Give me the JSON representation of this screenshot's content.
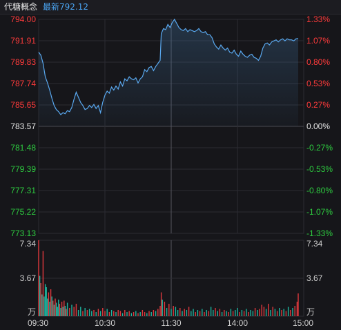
{
  "header": {
    "name": "代糖概念",
    "latest_label": "最新",
    "latest_value": "792.12"
  },
  "colors": {
    "up": "#ff3b3b",
    "down": "#2ecc40",
    "neutral": "#e6e6e6",
    "price_line": "#5aa9f0",
    "volume_up": "#e0393e",
    "volume_down": "#1fb5a0",
    "grid": "#2c2c33",
    "muted_text": "#cfcfcf"
  },
  "chart_data": {
    "type": "line",
    "title": "代糖概念",
    "prev_close": 783.57,
    "price_axis": {
      "ticks": [
        "794.00",
        "791.91",
        "789.83",
        "787.74",
        "785.65",
        "783.57",
        "781.48",
        "779.39",
        "777.31",
        "775.22",
        "773.13"
      ],
      "ylim": [
        773.13,
        794.0
      ]
    },
    "percent_axis": {
      "ticks": [
        "1.33%",
        "1.07%",
        "0.80%",
        "0.53%",
        "0.27%",
        "0.00%",
        "-0.27%",
        "-0.53%",
        "-0.80%",
        "-1.07%",
        "-1.33%"
      ]
    },
    "time_axis": {
      "labels": [
        "09:30",
        "10:30",
        "11:30",
        "14:00",
        "15:00"
      ],
      "sessions": [
        "09:30-11:30",
        "13:00-15:00"
      ],
      "total_minutes": 240
    },
    "price_series": [
      [
        0,
        790.8
      ],
      [
        2,
        790.5
      ],
      [
        4,
        789.7
      ],
      [
        6,
        788.4
      ],
      [
        8,
        787.8
      ],
      [
        10,
        787.1
      ],
      [
        12,
        786.3
      ],
      [
        14,
        785.6
      ],
      [
        16,
        785.2
      ],
      [
        18,
        785.0
      ],
      [
        20,
        784.7
      ],
      [
        22,
        784.9
      ],
      [
        24,
        784.8
      ],
      [
        26,
        785.1
      ],
      [
        28,
        785.0
      ],
      [
        30,
        785.4
      ],
      [
        32,
        786.2
      ],
      [
        34,
        786.9
      ],
      [
        36,
        786.4
      ],
      [
        38,
        785.9
      ],
      [
        40,
        785.6
      ],
      [
        42,
        785.2
      ],
      [
        44,
        785.3
      ],
      [
        46,
        785.6
      ],
      [
        48,
        785.4
      ],
      [
        50,
        785.7
      ],
      [
        52,
        785.3
      ],
      [
        54,
        785.6
      ],
      [
        56,
        784.9
      ],
      [
        58,
        785.9
      ],
      [
        60,
        786.6
      ],
      [
        62,
        787.0
      ],
      [
        64,
        786.8
      ],
      [
        66,
        787.4
      ],
      [
        68,
        787.1
      ],
      [
        70,
        787.5
      ],
      [
        72,
        787.2
      ],
      [
        74,
        787.9
      ],
      [
        76,
        787.5
      ],
      [
        78,
        788.2
      ],
      [
        80,
        788.0
      ],
      [
        82,
        788.4
      ],
      [
        84,
        788.2
      ],
      [
        86,
        788.1
      ],
      [
        88,
        788.3
      ],
      [
        90,
        787.8
      ],
      [
        92,
        788.2
      ],
      [
        94,
        788.4
      ],
      [
        96,
        789.1
      ],
      [
        98,
        788.9
      ],
      [
        100,
        789.3
      ],
      [
        102,
        789.4
      ],
      [
        104,
        789.0
      ],
      [
        106,
        789.4
      ],
      [
        108,
        789.7
      ],
      [
        110,
        790.0
      ],
      [
        111,
        792.6
      ],
      [
        113,
        793.1
      ],
      [
        115,
        793.0
      ],
      [
        117,
        793.5
      ],
      [
        119,
        793.2
      ],
      [
        121,
        793.7
      ],
      [
        123,
        794.0
      ],
      [
        125,
        793.6
      ],
      [
        127,
        793.2
      ],
      [
        129,
        793.0
      ],
      [
        131,
        792.9
      ],
      [
        133,
        793.1
      ],
      [
        135,
        792.8
      ],
      [
        137,
        793.0
      ],
      [
        139,
        792.9
      ],
      [
        141,
        792.8
      ],
      [
        143,
        792.9
      ],
      [
        145,
        793.1
      ],
      [
        147,
        792.8
      ],
      [
        149,
        792.7
      ],
      [
        151,
        792.8
      ],
      [
        153,
        792.5
      ],
      [
        155,
        792.5
      ],
      [
        157,
        792.2
      ],
      [
        159,
        791.6
      ],
      [
        161,
        791.3
      ],
      [
        163,
        791.1
      ],
      [
        165,
        791.5
      ],
      [
        167,
        791.2
      ],
      [
        169,
        791.0
      ],
      [
        171,
        791.2
      ],
      [
        173,
        790.8
      ],
      [
        175,
        790.7
      ],
      [
        177,
        791.0
      ],
      [
        179,
        790.6
      ],
      [
        181,
        790.4
      ],
      [
        183,
        790.9
      ],
      [
        185,
        790.6
      ],
      [
        187,
        790.4
      ],
      [
        189,
        790.3
      ],
      [
        191,
        790.5
      ],
      [
        193,
        790.6
      ],
      [
        195,
        790.3
      ],
      [
        197,
        790.2
      ],
      [
        199,
        790.0
      ],
      [
        201,
        790.4
      ],
      [
        203,
        791.2
      ],
      [
        205,
        791.6
      ],
      [
        207,
        791.7
      ],
      [
        209,
        791.5
      ],
      [
        211,
        791.8
      ],
      [
        213,
        791.9
      ],
      [
        215,
        792.0
      ],
      [
        217,
        791.8
      ],
      [
        219,
        792.0
      ],
      [
        221,
        792.1
      ],
      [
        223,
        791.9
      ],
      [
        225,
        792.1
      ],
      [
        227,
        792.0
      ],
      [
        229,
        792.0
      ],
      [
        231,
        791.9
      ],
      [
        233,
        792.1
      ],
      [
        235,
        792.12
      ]
    ],
    "volume_axis": {
      "unit": "万",
      "ticks": [
        "7.34",
        "3.67"
      ],
      "ylim": [
        0,
        7.34
      ]
    },
    "volume_series": [
      {
        "t": 0,
        "v": 7.34,
        "up": true
      },
      {
        "t": 1,
        "v": 3.9,
        "up": false
      },
      {
        "t": 2,
        "v": 3.2,
        "up": true
      },
      {
        "t": 3,
        "v": 2.1,
        "up": false
      },
      {
        "t": 4,
        "v": 6.3,
        "up": true
      },
      {
        "t": 5,
        "v": 1.9,
        "up": false
      },
      {
        "t": 6,
        "v": 3.1,
        "up": false
      },
      {
        "t": 7,
        "v": 2.8,
        "up": false
      },
      {
        "t": 8,
        "v": 1.7,
        "up": false
      },
      {
        "t": 9,
        "v": 2.3,
        "up": true
      },
      {
        "t": 10,
        "v": 1.4,
        "up": false
      },
      {
        "t": 11,
        "v": 2.6,
        "up": true
      },
      {
        "t": 12,
        "v": 1.9,
        "up": false
      },
      {
        "t": 13,
        "v": 1.5,
        "up": true
      },
      {
        "t": 14,
        "v": 1.1,
        "up": false
      },
      {
        "t": 15,
        "v": 1.7,
        "up": true
      },
      {
        "t": 16,
        "v": 1.3,
        "up": false
      },
      {
        "t": 17,
        "v": 0.9,
        "up": false
      },
      {
        "t": 18,
        "v": 1.6,
        "up": false
      },
      {
        "t": 19,
        "v": 1.2,
        "up": true
      },
      {
        "t": 20,
        "v": 0.8,
        "up": false
      },
      {
        "t": 21,
        "v": 1.4,
        "up": true
      },
      {
        "t": 22,
        "v": 0.9,
        "up": false
      },
      {
        "t": 23,
        "v": 1.5,
        "up": true
      },
      {
        "t": 24,
        "v": 1.0,
        "up": false
      },
      {
        "t": 25,
        "v": 0.7,
        "up": true
      },
      {
        "t": 26,
        "v": 1.3,
        "up": false
      },
      {
        "t": 28,
        "v": 0.8,
        "up": true
      },
      {
        "t": 30,
        "v": 1.1,
        "up": false
      },
      {
        "t": 32,
        "v": 0.9,
        "up": true
      },
      {
        "t": 34,
        "v": 1.2,
        "up": true
      },
      {
        "t": 36,
        "v": 0.6,
        "up": false
      },
      {
        "t": 38,
        "v": 0.9,
        "up": false
      },
      {
        "t": 40,
        "v": 0.5,
        "up": true
      },
      {
        "t": 42,
        "v": 0.8,
        "up": false
      },
      {
        "t": 44,
        "v": 0.6,
        "up": true
      },
      {
        "t": 46,
        "v": 0.7,
        "up": false
      },
      {
        "t": 48,
        "v": 0.5,
        "up": false
      },
      {
        "t": 50,
        "v": 0.6,
        "up": true
      },
      {
        "t": 52,
        "v": 0.4,
        "up": false
      },
      {
        "t": 54,
        "v": 0.7,
        "up": true
      },
      {
        "t": 56,
        "v": 0.5,
        "up": false
      },
      {
        "t": 58,
        "v": 0.8,
        "up": true
      },
      {
        "t": 60,
        "v": 0.5,
        "up": true
      },
      {
        "t": 62,
        "v": 0.7,
        "up": false
      },
      {
        "t": 64,
        "v": 0.4,
        "up": true
      },
      {
        "t": 66,
        "v": 0.6,
        "up": false
      },
      {
        "t": 68,
        "v": 0.5,
        "up": true
      },
      {
        "t": 70,
        "v": 0.4,
        "up": false
      },
      {
        "t": 72,
        "v": 0.6,
        "up": true
      },
      {
        "t": 74,
        "v": 0.5,
        "up": true
      },
      {
        "t": 76,
        "v": 0.3,
        "up": false
      },
      {
        "t": 78,
        "v": 0.6,
        "up": true
      },
      {
        "t": 80,
        "v": 0.4,
        "up": false
      },
      {
        "t": 82,
        "v": 0.5,
        "up": true
      },
      {
        "t": 84,
        "v": 0.3,
        "up": false
      },
      {
        "t": 86,
        "v": 0.4,
        "up": true
      },
      {
        "t": 88,
        "v": 0.5,
        "up": false
      },
      {
        "t": 90,
        "v": 0.3,
        "up": true
      },
      {
        "t": 92,
        "v": 0.4,
        "up": false
      },
      {
        "t": 94,
        "v": 0.6,
        "up": true
      },
      {
        "t": 96,
        "v": 0.4,
        "up": true
      },
      {
        "t": 98,
        "v": 0.3,
        "up": false
      },
      {
        "t": 100,
        "v": 0.5,
        "up": true
      },
      {
        "t": 102,
        "v": 0.4,
        "up": false
      },
      {
        "t": 104,
        "v": 0.6,
        "up": true
      },
      {
        "t": 106,
        "v": 0.5,
        "up": false
      },
      {
        "t": 108,
        "v": 0.7,
        "up": true
      },
      {
        "t": 110,
        "v": 1.0,
        "up": true
      },
      {
        "t": 111,
        "v": 2.3,
        "up": true
      },
      {
        "t": 112,
        "v": 1.6,
        "up": false
      },
      {
        "t": 114,
        "v": 1.4,
        "up": true
      },
      {
        "t": 116,
        "v": 0.8,
        "up": false
      },
      {
        "t": 118,
        "v": 1.2,
        "up": true
      },
      {
        "t": 120,
        "v": 0.7,
        "up": false
      },
      {
        "t": 122,
        "v": 1.0,
        "up": true
      },
      {
        "t": 124,
        "v": 0.9,
        "up": false
      },
      {
        "t": 126,
        "v": 0.6,
        "up": false
      },
      {
        "t": 128,
        "v": 0.8,
        "up": true
      },
      {
        "t": 130,
        "v": 0.5,
        "up": false
      },
      {
        "t": 132,
        "v": 0.7,
        "up": true
      },
      {
        "t": 134,
        "v": 0.6,
        "up": false
      },
      {
        "t": 136,
        "v": 0.9,
        "up": true
      },
      {
        "t": 138,
        "v": 0.5,
        "up": false
      },
      {
        "t": 140,
        "v": 0.7,
        "up": false
      },
      {
        "t": 142,
        "v": 0.4,
        "up": true
      },
      {
        "t": 144,
        "v": 0.6,
        "up": false
      },
      {
        "t": 146,
        "v": 0.5,
        "up": true
      },
      {
        "t": 148,
        "v": 0.7,
        "up": false
      },
      {
        "t": 150,
        "v": 0.4,
        "up": true
      },
      {
        "t": 152,
        "v": 0.6,
        "up": false
      },
      {
        "t": 154,
        "v": 0.5,
        "up": true
      },
      {
        "t": 156,
        "v": 0.9,
        "up": false
      },
      {
        "t": 158,
        "v": 0.6,
        "up": false
      },
      {
        "t": 160,
        "v": 0.8,
        "up": true
      },
      {
        "t": 162,
        "v": 0.5,
        "up": false
      },
      {
        "t": 164,
        "v": 0.7,
        "up": true
      },
      {
        "t": 166,
        "v": 0.4,
        "up": false
      },
      {
        "t": 168,
        "v": 0.6,
        "up": true
      },
      {
        "t": 170,
        "v": 0.5,
        "up": false
      },
      {
        "t": 172,
        "v": 0.4,
        "up": true
      },
      {
        "t": 174,
        "v": 0.7,
        "up": false
      },
      {
        "t": 176,
        "v": 0.5,
        "up": true
      },
      {
        "t": 178,
        "v": 0.6,
        "up": false
      },
      {
        "t": 180,
        "v": 0.8,
        "up": false
      },
      {
        "t": 182,
        "v": 0.4,
        "up": true
      },
      {
        "t": 184,
        "v": 0.6,
        "up": false
      },
      {
        "t": 186,
        "v": 0.5,
        "up": true
      },
      {
        "t": 188,
        "v": 0.7,
        "up": false
      },
      {
        "t": 190,
        "v": 0.4,
        "up": true
      },
      {
        "t": 192,
        "v": 0.6,
        "up": false
      },
      {
        "t": 194,
        "v": 0.5,
        "up": false
      },
      {
        "t": 196,
        "v": 0.8,
        "up": true
      },
      {
        "t": 198,
        "v": 0.6,
        "up": false
      },
      {
        "t": 200,
        "v": 0.7,
        "up": true
      },
      {
        "t": 202,
        "v": 1.1,
        "up": true
      },
      {
        "t": 204,
        "v": 0.9,
        "up": true
      },
      {
        "t": 206,
        "v": 0.7,
        "up": false
      },
      {
        "t": 208,
        "v": 1.2,
        "up": true
      },
      {
        "t": 210,
        "v": 0.6,
        "up": false
      },
      {
        "t": 212,
        "v": 0.9,
        "up": true
      },
      {
        "t": 214,
        "v": 0.7,
        "up": false
      },
      {
        "t": 216,
        "v": 0.5,
        "up": true
      },
      {
        "t": 218,
        "v": 0.8,
        "up": false
      },
      {
        "t": 220,
        "v": 0.6,
        "up": true
      },
      {
        "t": 222,
        "v": 0.7,
        "up": false
      },
      {
        "t": 224,
        "v": 0.5,
        "up": true
      },
      {
        "t": 226,
        "v": 0.9,
        "up": false
      },
      {
        "t": 228,
        "v": 0.6,
        "up": true
      },
      {
        "t": 230,
        "v": 0.8,
        "up": false
      },
      {
        "t": 232,
        "v": 1.0,
        "up": true
      },
      {
        "t": 234,
        "v": 1.4,
        "up": true
      },
      {
        "t": 235,
        "v": 2.2,
        "up": true
      }
    ]
  }
}
